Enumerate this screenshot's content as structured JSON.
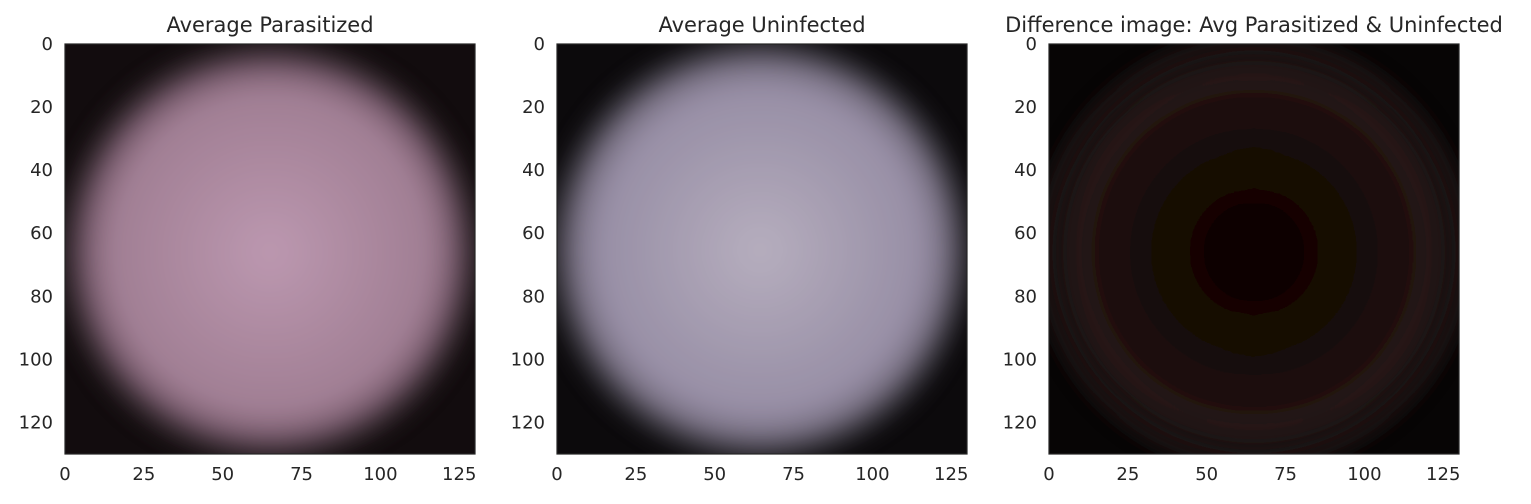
{
  "chart_data": [
    {
      "type": "image",
      "title": "Average Parasitized",
      "xlim": [
        0,
        130
      ],
      "ylim": [
        130,
        0
      ],
      "xticks": [
        "0",
        "25",
        "50",
        "75",
        "100",
        "125"
      ],
      "yticks": [
        "0",
        "20",
        "40",
        "60",
        "80",
        "100",
        "120"
      ],
      "grid": false,
      "center_color": "#bc98b0",
      "edge_color": "#a07e93",
      "background_color": "#120c0e"
    },
    {
      "type": "image",
      "title": "Average Uninfected",
      "xlim": [
        0,
        130
      ],
      "ylim": [
        130,
        0
      ],
      "xticks": [
        "0",
        "25",
        "50",
        "75",
        "100",
        "125"
      ],
      "yticks": [
        "0",
        "20",
        "40",
        "60",
        "80",
        "100",
        "120"
      ],
      "grid": false,
      "center_color": "#b6aebe",
      "edge_color": "#978ea5",
      "background_color": "#0c0a0c"
    },
    {
      "type": "image",
      "title": "Difference image: Avg Parasitized & Uninfected",
      "xlim": [
        0,
        130
      ],
      "ylim": [
        130,
        0
      ],
      "xticks": [
        "0",
        "25",
        "50",
        "75",
        "100",
        "125"
      ],
      "yticks": [
        "0",
        "20",
        "40",
        "60",
        "80",
        "100",
        "120"
      ],
      "grid": false,
      "center_color": "#0c0303",
      "edge_color": "#1c0b08",
      "background_color": "#070505"
    }
  ]
}
